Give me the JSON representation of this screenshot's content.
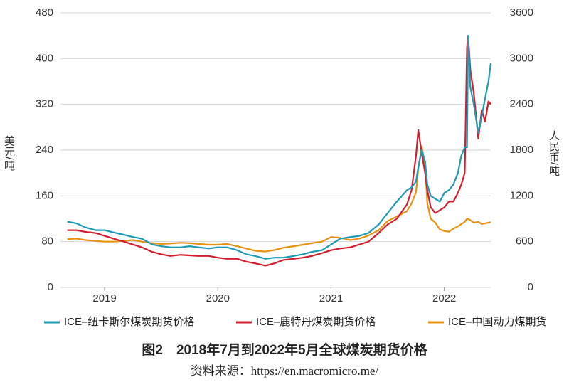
{
  "chart_data": {
    "type": "line",
    "title": "图2　2018年7月到2022年5月全球煤炭期货价格",
    "source": "资料来源：https://en.macromicro.me/",
    "ylabel": "美元/吨",
    "y2label": "人民币/吨",
    "x": [
      2018.67,
      2018.75,
      2018.83,
      2018.92,
      2019.0,
      2019.08,
      2019.17,
      2019.25,
      2019.33,
      2019.42,
      2019.5,
      2019.58,
      2019.67,
      2019.75,
      2019.83,
      2019.92,
      2020.0,
      2020.08,
      2020.17,
      2020.25,
      2020.33,
      2020.42,
      2020.5,
      2020.58,
      2020.67,
      2020.75,
      2020.83,
      2020.92,
      2021.0,
      2021.08,
      2021.17,
      2021.25,
      2021.33,
      2021.42,
      2021.5,
      2021.58,
      2021.67,
      2021.71,
      2021.75,
      2021.77,
      2021.8,
      2021.83,
      2021.85,
      2021.88,
      2021.92,
      2021.96,
      2022.0,
      2022.04,
      2022.08,
      2022.12,
      2022.15,
      2022.18,
      2022.2,
      2022.21,
      2022.23,
      2022.26,
      2022.3,
      2022.33,
      2022.36,
      2022.39,
      2022.41
    ],
    "xlim": [
      2018.61,
      2022.41
    ],
    "xticks": [
      2019,
      2020,
      2021,
      2022
    ],
    "ylim": [
      0,
      480
    ],
    "yticks": [
      0,
      80,
      160,
      240,
      320,
      400,
      480
    ],
    "y2lim": [
      0,
      3600
    ],
    "y2ticks": [
      0,
      600,
      1200,
      1800,
      2400,
      3000,
      3600
    ],
    "grid": true,
    "legend": "bottom",
    "series": [
      {
        "name": "ICE–纽卡斯尔煤炭期货价格",
        "color": "#1f9ab4",
        "values": [
          115,
          112,
          105,
          100,
          100,
          96,
          92,
          88,
          85,
          75,
          72,
          70,
          70,
          72,
          70,
          68,
          70,
          70,
          65,
          58,
          55,
          50,
          52,
          52,
          55,
          58,
          62,
          65,
          75,
          85,
          88,
          90,
          95,
          110,
          130,
          150,
          170,
          175,
          185,
          210,
          240,
          220,
          180,
          160,
          155,
          150,
          165,
          170,
          180,
          200,
          230,
          245,
          245,
          440,
          350,
          320,
          270,
          300,
          330,
          360,
          392
        ]
      },
      {
        "name": "ICE–鹿特丹煤炭期货价格",
        "color": "#d21f2f",
        "values": [
          100,
          100,
          97,
          95,
          90,
          85,
          80,
          75,
          70,
          62,
          58,
          55,
          57,
          56,
          55,
          55,
          52,
          50,
          50,
          45,
          42,
          38,
          42,
          48,
          50,
          52,
          55,
          60,
          65,
          68,
          70,
          75,
          80,
          95,
          110,
          120,
          145,
          170,
          230,
          275,
          235,
          200,
          170,
          140,
          130,
          135,
          140,
          150,
          150,
          165,
          180,
          200,
          420,
          440,
          380,
          340,
          260,
          310,
          290,
          325,
          320
        ]
      },
      {
        "name": "ICE–中国动力煤期货",
        "color": "#e99212",
        "axis": "y2",
        "values": [
          630,
          640,
          620,
          610,
          600,
          600,
          610,
          620,
          600,
          580,
          570,
          575,
          585,
          580,
          570,
          560,
          560,
          570,
          540,
          510,
          480,
          470,
          490,
          520,
          540,
          560,
          580,
          600,
          660,
          650,
          620,
          640,
          680,
          750,
          870,
          930,
          1000,
          1100,
          1250,
          1550,
          1850,
          1600,
          1100,
          900,
          850,
          760,
          740,
          730,
          770,
          800,
          830,
          860,
          900,
          900,
          880,
          850,
          860,
          830,
          840,
          850,
          855
        ]
      }
    ]
  }
}
